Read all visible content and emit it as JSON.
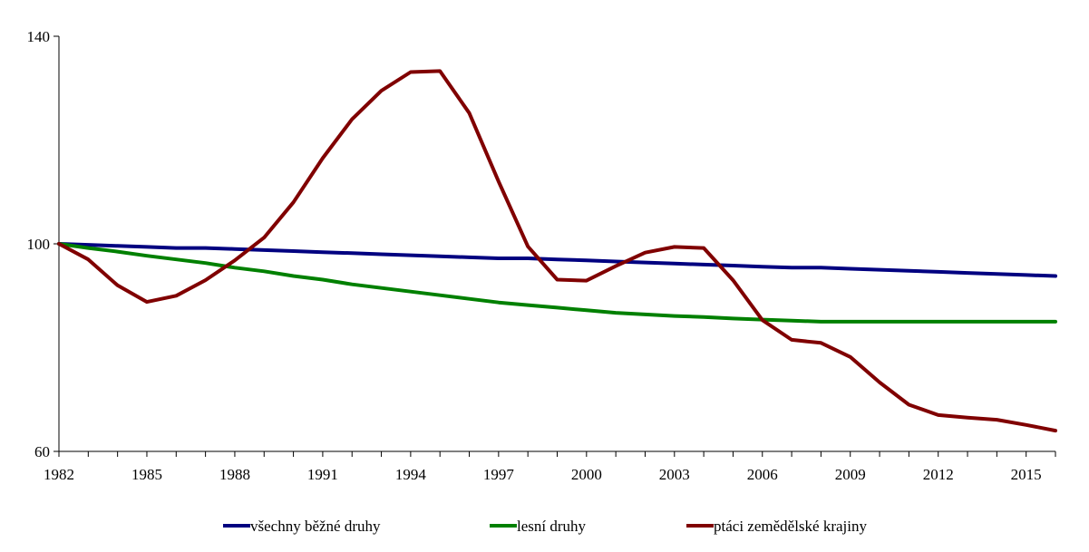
{
  "chart_data": {
    "type": "line",
    "title": "",
    "xlabel": "",
    "ylabel": "",
    "x": [
      1982,
      1983,
      1984,
      1985,
      1986,
      1987,
      1988,
      1989,
      1990,
      1991,
      1992,
      1993,
      1994,
      1995,
      1996,
      1997,
      1998,
      1999,
      2000,
      2001,
      2002,
      2003,
      2004,
      2005,
      2006,
      2007,
      2008,
      2009,
      2010,
      2011,
      2012,
      2013,
      2014,
      2015,
      2016
    ],
    "xlim": [
      1982,
      2016
    ],
    "ylim": [
      60,
      140
    ],
    "x_ticks": [
      1982,
      1985,
      1988,
      1991,
      1994,
      1997,
      2000,
      2003,
      2006,
      2009,
      2012,
      2015
    ],
    "y_ticks": [
      60,
      100,
      140
    ],
    "grid": false,
    "legend_position": "bottom",
    "series": [
      {
        "name": "všechny běžné druhy",
        "color": "#000080",
        "values": [
          100,
          99.8,
          99.6,
          99.4,
          99.2,
          99.2,
          99.0,
          98.8,
          98.6,
          98.4,
          98.2,
          98.0,
          97.8,
          97.6,
          97.4,
          97.2,
          97.2,
          97.0,
          96.8,
          96.6,
          96.4,
          96.2,
          96.0,
          95.8,
          95.6,
          95.4,
          95.4,
          95.2,
          95.0,
          94.8,
          94.6,
          94.4,
          94.2,
          94.0,
          93.8
        ]
      },
      {
        "name": "lesní druhy",
        "color": "#008000",
        "values": [
          100,
          99.2,
          98.5,
          97.7,
          97.0,
          96.3,
          95.4,
          94.7,
          93.8,
          93.1,
          92.2,
          91.5,
          90.8,
          90.1,
          89.4,
          88.7,
          88.2,
          87.7,
          87.2,
          86.7,
          86.4,
          86.1,
          85.9,
          85.6,
          85.4,
          85.2,
          85.0,
          85.0,
          85.0,
          85.0,
          85.0,
          85.0,
          85.0,
          85.0,
          85.0
        ]
      },
      {
        "name": "ptáci zemědělské krajiny",
        "color": "#800000",
        "values": [
          100,
          97.0,
          92.0,
          88.8,
          90.0,
          93.0,
          96.8,
          101.2,
          108.0,
          116.5,
          124.0,
          129.5,
          133.1,
          133.3,
          125.2,
          112.0,
          99.5,
          93.1,
          92.9,
          95.7,
          98.3,
          99.4,
          99.2,
          93.0,
          85.3,
          81.5,
          80.9,
          78.2,
          73.3,
          69.0,
          67.0,
          66.5,
          66.1,
          65.1,
          64.0
        ]
      }
    ]
  }
}
